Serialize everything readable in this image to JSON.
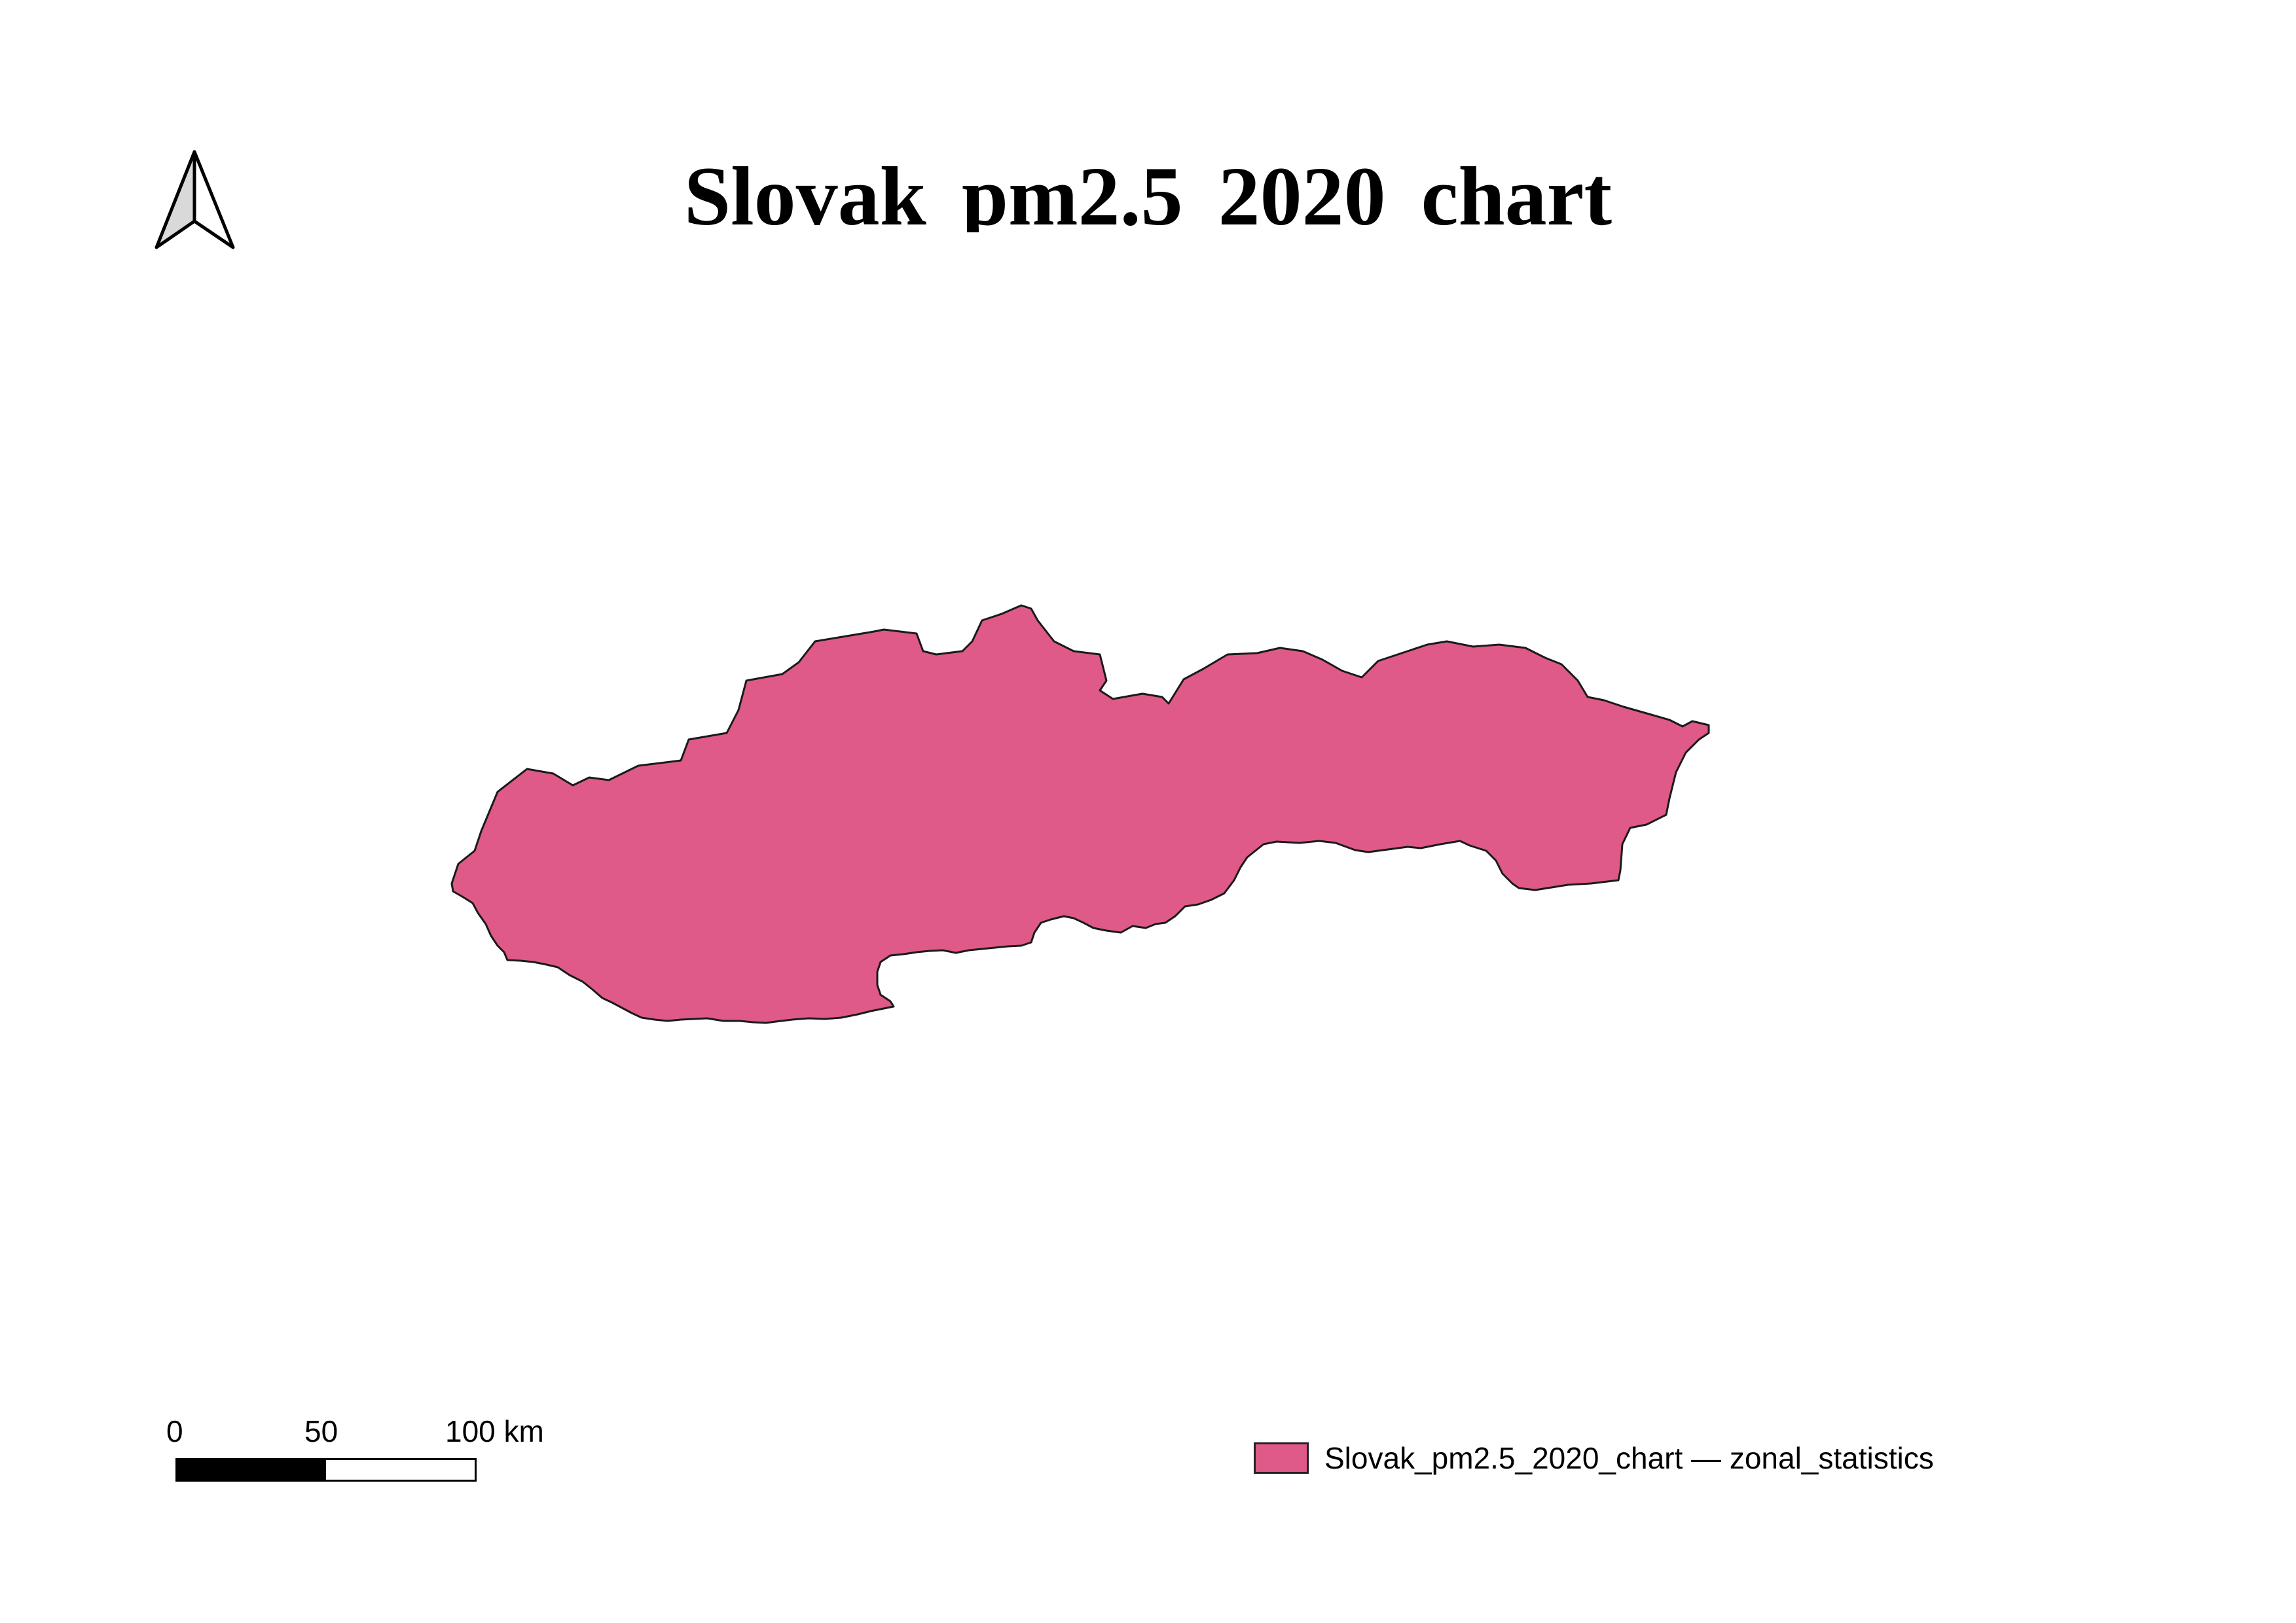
{
  "map": {
    "title": "Slovak  pm2.5  2020  chart",
    "region": {
      "fill_color": "#df5a88",
      "stroke_color": "#1a1a1a"
    },
    "north_arrow": {
      "icon": "north-arrow-icon"
    },
    "scalebar": {
      "labels": [
        "0",
        "50",
        "100 km"
      ],
      "segments": [
        "#000000",
        "#ffffff"
      ]
    },
    "legend": {
      "items": [
        {
          "label": "Slovak_pm2.5_2020_chart — zonal_statistics",
          "color": "#df5a88"
        }
      ]
    }
  }
}
